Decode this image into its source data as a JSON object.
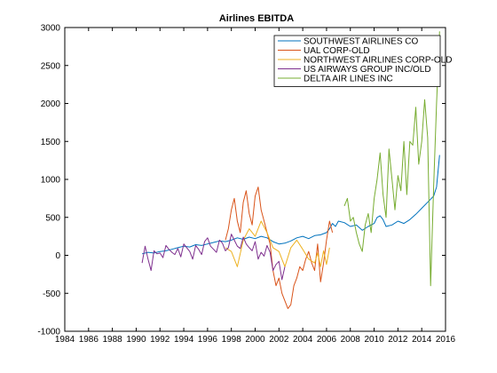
{
  "chart_data": {
    "type": "line",
    "title": "Airlines EBITDA",
    "xlabel": "",
    "ylabel": "",
    "xlim": [
      1984,
      2016
    ],
    "ylim": [
      -1000,
      3000
    ],
    "xticks": [
      "1984",
      "1986",
      "1988",
      "1990",
      "1992",
      "1994",
      "1996",
      "1998",
      "2000",
      "2002",
      "2004",
      "2006",
      "2008",
      "2010",
      "2012",
      "2014",
      "2016"
    ],
    "yticks": [
      "-1000",
      "-500",
      "0",
      "500",
      "1000",
      "1500",
      "2000",
      "2500",
      "3000"
    ],
    "grid": false,
    "legend_position": "top-right",
    "series": [
      {
        "name": "SOUTHWEST AIRLINES CO",
        "color": "#0072bd",
        "x": [
          1990.5,
          1991,
          1991.5,
          1992,
          1992.5,
          1993,
          1993.5,
          1994,
          1994.5,
          1995,
          1995.5,
          1996,
          1996.5,
          1997,
          1997.5,
          1998,
          1998.5,
          1999,
          1999.5,
          2000,
          2000.5,
          2001,
          2001.5,
          2002,
          2002.5,
          2003,
          2003.5,
          2004,
          2004.5,
          2005,
          2005.5,
          2006,
          2006.25,
          2006.5,
          2006.75,
          2007,
          2007.5,
          2008,
          2008.5,
          2009,
          2009.5,
          2010,
          2010.25,
          2010.5,
          2010.75,
          2011,
          2011.5,
          2012,
          2012.5,
          2013,
          2013.5,
          2014,
          2014.5,
          2015,
          2015.25,
          2015.5
        ],
        "y": [
          20,
          40,
          30,
          50,
          60,
          80,
          100,
          120,
          110,
          140,
          130,
          150,
          170,
          190,
          180,
          200,
          230,
          210,
          240,
          220,
          250,
          230,
          180,
          150,
          160,
          190,
          230,
          250,
          220,
          260,
          270,
          300,
          350,
          420,
          380,
          450,
          430,
          380,
          400,
          330,
          380,
          420,
          500,
          520,
          470,
          380,
          400,
          450,
          420,
          470,
          540,
          620,
          700,
          780,
          900,
          1320
        ]
      },
      {
        "name": "UAL CORP-OLD",
        "color": "#d95319",
        "x": [
          1997.5,
          1997.75,
          1998,
          1998.25,
          1998.5,
          1998.75,
          1999,
          1999.25,
          1999.5,
          1999.75,
          2000,
          2000.25,
          2000.5,
          2000.75,
          2001,
          2001.25,
          2001.5,
          2001.75,
          2002,
          2002.25,
          2002.5,
          2002.75,
          2003,
          2003.25,
          2003.5,
          2003.75,
          2004,
          2004.25,
          2004.5,
          2004.75,
          2005,
          2005.25,
          2005.5,
          2005.75,
          2006,
          2006.25,
          2006.5
        ],
        "y": [
          200,
          350,
          600,
          750,
          450,
          300,
          700,
          850,
          550,
          400,
          780,
          900,
          600,
          450,
          300,
          150,
          -200,
          -400,
          -300,
          -500,
          -600,
          -700,
          -650,
          -400,
          -300,
          -150,
          -200,
          -50,
          50,
          -100,
          -200,
          150,
          -350,
          -100,
          200,
          450,
          300
        ]
      },
      {
        "name": "NORTHWEST AIRLINES CORP-OLD",
        "color": "#edb120",
        "x": [
          1997.5,
          1998,
          1998.5,
          1999,
          1999.5,
          2000,
          2000.5,
          2001,
          2001.5,
          2002,
          2002.5,
          2003,
          2003.5,
          2004,
          2004.5,
          2005,
          2005.25,
          2005.5,
          2005.75,
          2006,
          2006.25
        ],
        "y": [
          100,
          50,
          -150,
          200,
          350,
          250,
          450,
          300,
          100,
          50,
          -150,
          100,
          200,
          80,
          -50,
          -100,
          30,
          -150,
          60,
          -120,
          100
        ]
      },
      {
        "name": "US AIRWAYS GROUP INC/OLD",
        "color": "#7e2f8e",
        "x": [
          1990.5,
          1990.75,
          1991,
          1991.25,
          1991.5,
          1991.75,
          1992,
          1992.25,
          1992.5,
          1992.75,
          1993,
          1993.25,
          1993.5,
          1993.75,
          1994,
          1994.25,
          1994.5,
          1994.75,
          1995,
          1995.25,
          1995.5,
          1995.75,
          1996,
          1996.25,
          1996.5,
          1996.75,
          1997,
          1997.25,
          1997.5,
          1997.75,
          1998,
          1998.25,
          1998.5,
          1998.75,
          1999,
          1999.25,
          1999.5,
          1999.75,
          2000,
          2000.25,
          2000.5,
          2000.75,
          2001,
          2001.25,
          2001.5,
          2001.75,
          2002,
          2002.25,
          2002.5
        ],
        "y": [
          -100,
          120,
          -50,
          -200,
          60,
          20,
          30,
          -30,
          130,
          80,
          40,
          10,
          90,
          -20,
          150,
          100,
          50,
          -50,
          130,
          80,
          10,
          180,
          230,
          120,
          80,
          40,
          200,
          160,
          60,
          100,
          280,
          200,
          120,
          90,
          240,
          150,
          100,
          60,
          180,
          -50,
          40,
          -10,
          130,
          40,
          -200,
          -120,
          -80,
          -320,
          -150
        ]
      },
      {
        "name": "DELTA AIR LINES INC",
        "color": "#77ac30",
        "x": [
          2007.5,
          2007.75,
          2008,
          2008.25,
          2008.5,
          2008.75,
          2009,
          2009.25,
          2009.5,
          2009.75,
          2010,
          2010.25,
          2010.5,
          2010.75,
          2011,
          2011.25,
          2011.5,
          2011.75,
          2012,
          2012.25,
          2012.5,
          2012.75,
          2013,
          2013.25,
          2013.5,
          2013.75,
          2014,
          2014.25,
          2014.5,
          2014.75,
          2015,
          2015.25,
          2015.5
        ],
        "y": [
          650,
          750,
          450,
          500,
          300,
          150,
          50,
          400,
          550,
          300,
          750,
          1000,
          1350,
          800,
          500,
          1400,
          1000,
          600,
          1050,
          850,
          1500,
          800,
          1500,
          1450,
          1950,
          1200,
          1500,
          2050,
          1550,
          -400,
          900,
          2000,
          2950
        ]
      }
    ]
  }
}
